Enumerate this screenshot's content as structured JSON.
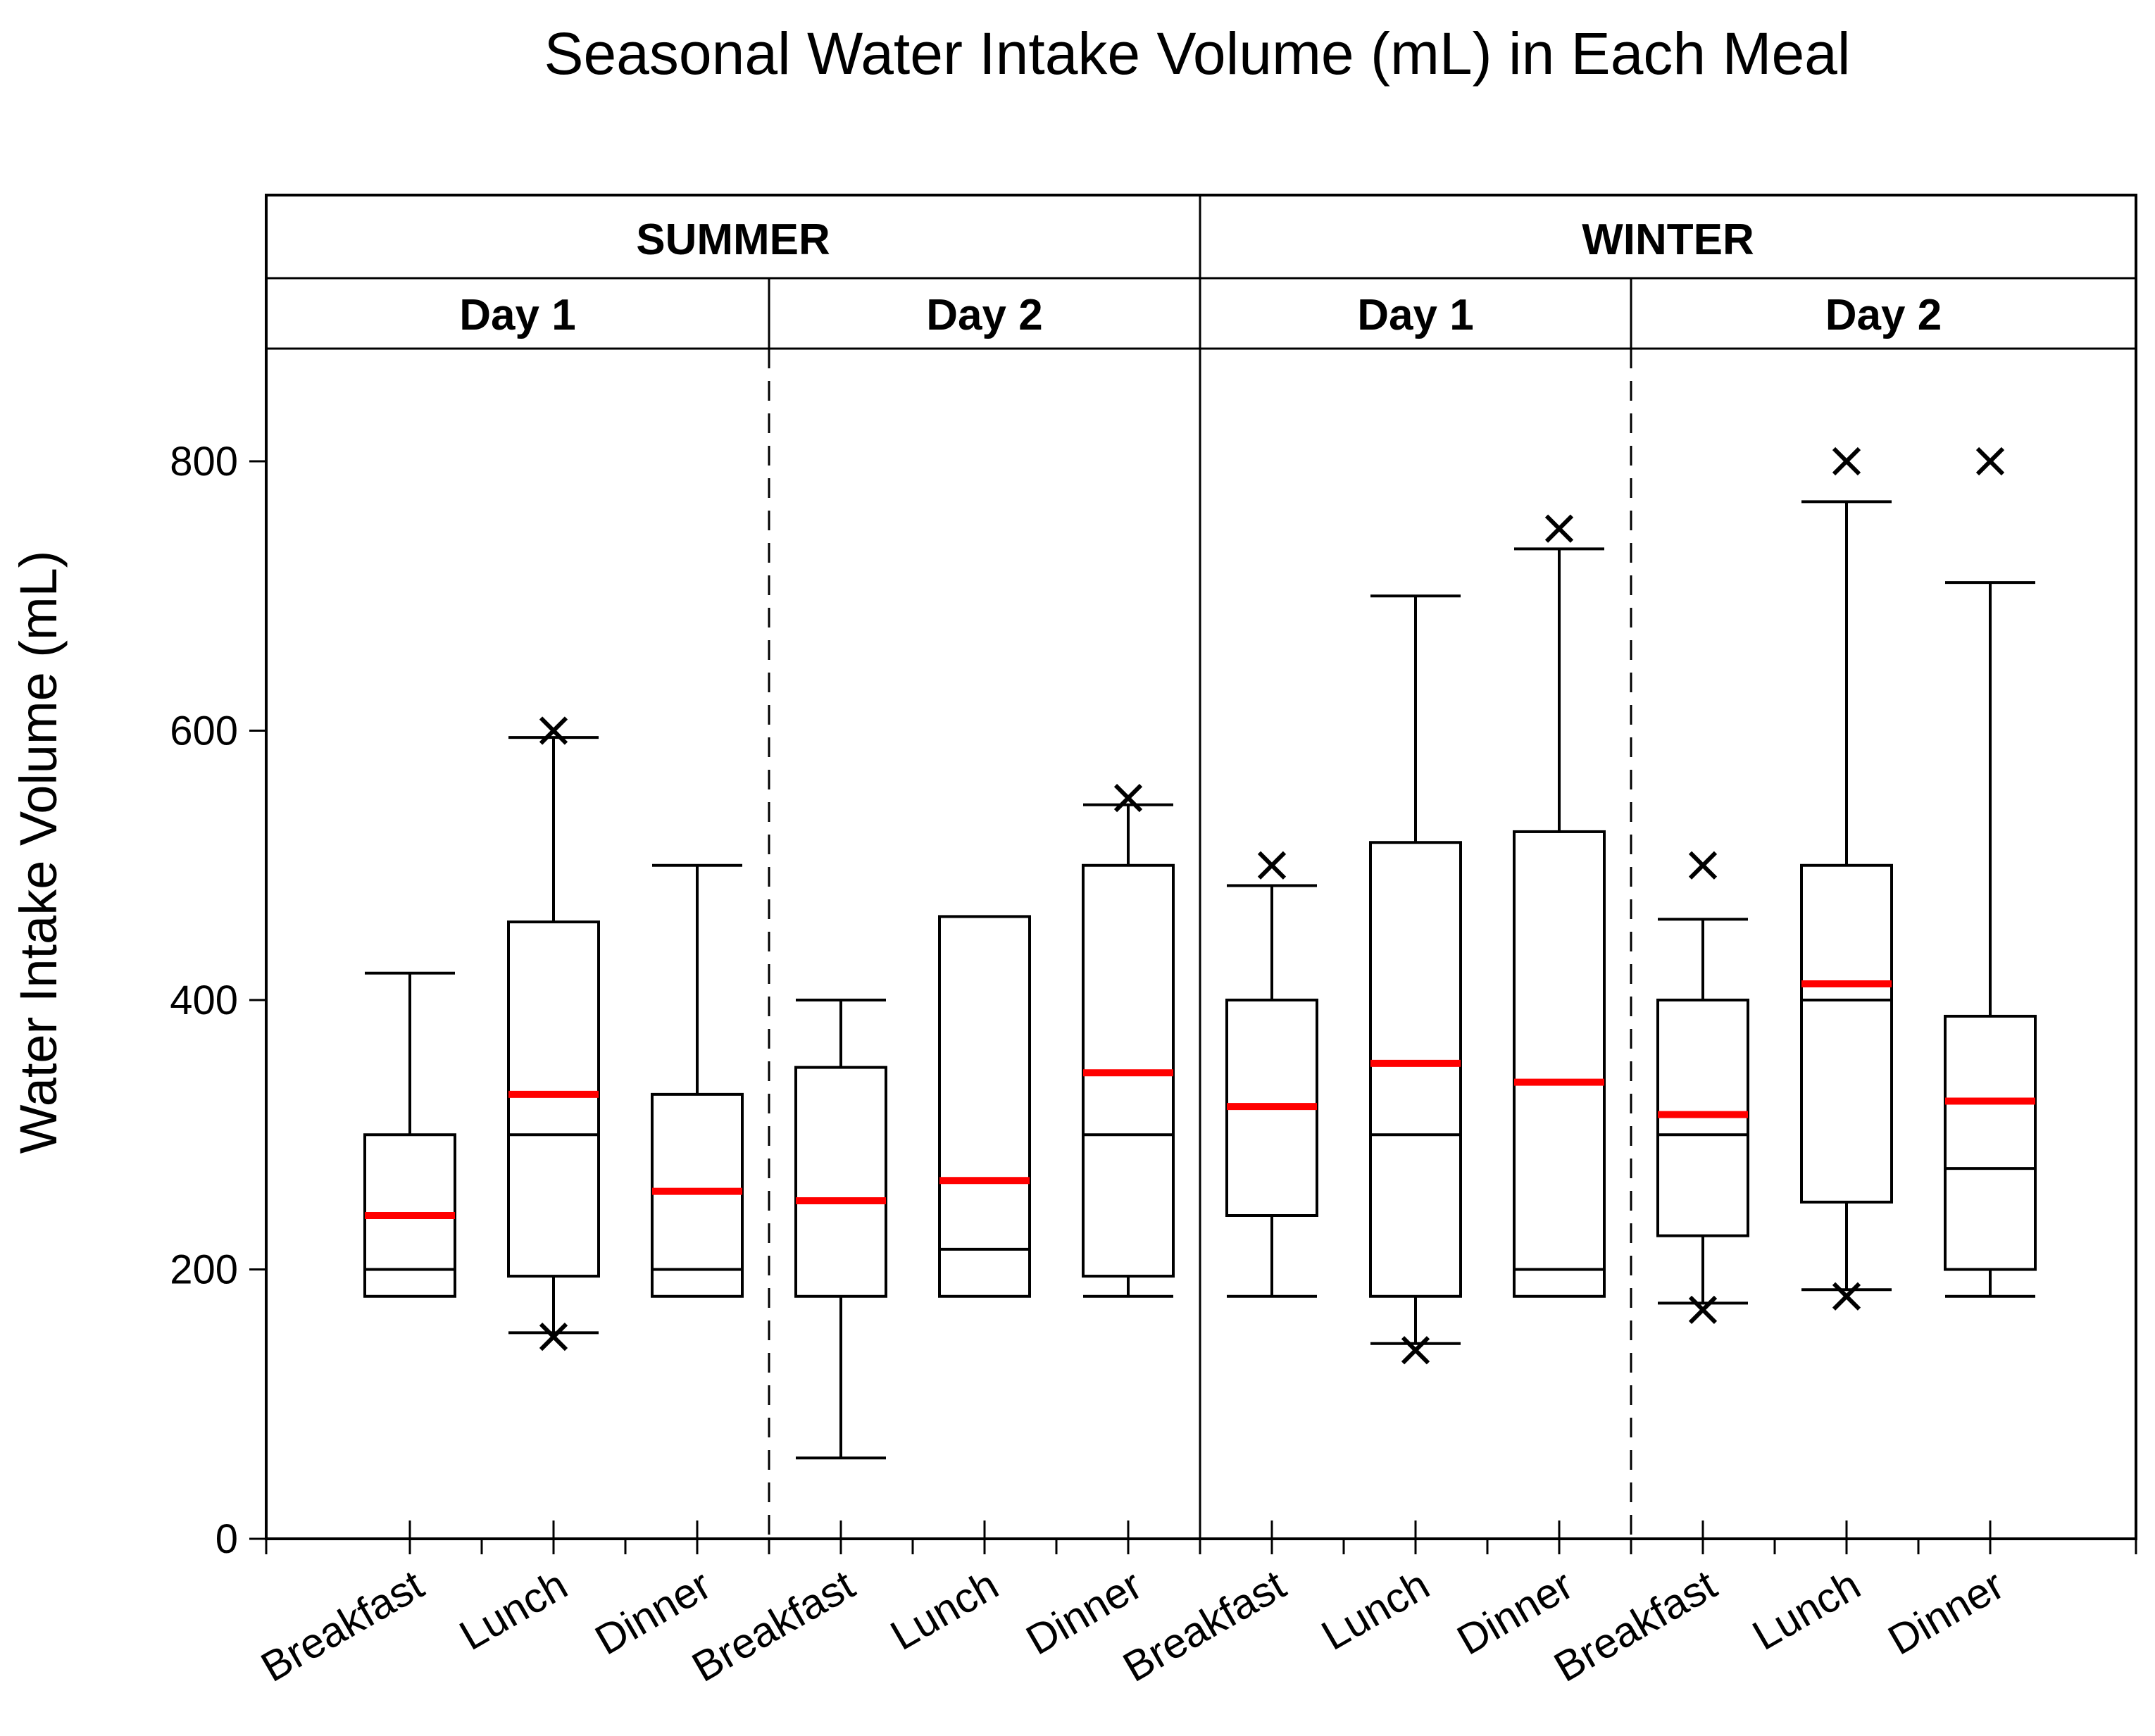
{
  "chart_data": {
    "type": "boxplot",
    "title": "Seasonal Water Intake Volume (mL) in Each Meal",
    "xlabel": "",
    "ylabel": "Water Intake Volume (mL)",
    "ylim": [
      0,
      900
    ],
    "yticks": [
      0,
      200,
      400,
      600,
      800
    ],
    "grid": false,
    "mean_color": "#ff0000",
    "box_color": "#000000",
    "seasons": [
      {
        "name": "SUMMER",
        "days": [
          0,
          1
        ]
      },
      {
        "name": "WINTER",
        "days": [
          2,
          3
        ]
      }
    ],
    "days": [
      {
        "label": "Day 1",
        "season": "SUMMER"
      },
      {
        "label": "Day 2",
        "season": "SUMMER"
      },
      {
        "label": "Day 1",
        "season": "WINTER"
      },
      {
        "label": "Day 2",
        "season": "WINTER"
      }
    ],
    "categories": [
      "Breakfast",
      "Lunch",
      "Dinner",
      "Breakfast",
      "Lunch",
      "Dinner",
      "Breakfast",
      "Lunch",
      "Dinner",
      "Breakfast",
      "Lunch",
      "Dinner"
    ],
    "boxes": [
      {
        "season": "SUMMER",
        "day": "Day 1",
        "meal": "Breakfast",
        "whisker_low": 180,
        "q1": 180,
        "median": 200,
        "q3": 300,
        "whisker_high": 420,
        "mean": 240,
        "outliers": []
      },
      {
        "season": "SUMMER",
        "day": "Day 1",
        "meal": "Lunch",
        "whisker_low": 153,
        "q1": 195,
        "median": 300,
        "q3": 458,
        "whisker_high": 595,
        "mean": 330,
        "outliers": [
          150,
          600
        ]
      },
      {
        "season": "SUMMER",
        "day": "Day 1",
        "meal": "Dinner",
        "whisker_low": 180,
        "q1": 180,
        "median": 200,
        "q3": 330,
        "whisker_high": 500,
        "mean": 258,
        "outliers": []
      },
      {
        "season": "SUMMER",
        "day": "Day 2",
        "meal": "Breakfast",
        "whisker_low": 60,
        "q1": 180,
        "median": 250,
        "q3": 350,
        "whisker_high": 400,
        "mean": 251,
        "outliers": []
      },
      {
        "season": "SUMMER",
        "day": "Day 2",
        "meal": "Lunch",
        "whisker_low": 180,
        "q1": 180,
        "median": 215,
        "q3": 462,
        "whisker_high": 462,
        "mean": 266,
        "outliers": []
      },
      {
        "season": "SUMMER",
        "day": "Day 2",
        "meal": "Dinner",
        "whisker_low": 180,
        "q1": 195,
        "median": 300,
        "q3": 500,
        "whisker_high": 545,
        "mean": 346,
        "outliers": [
          550
        ]
      },
      {
        "season": "WINTER",
        "day": "Day 1",
        "meal": "Breakfast",
        "whisker_low": 180,
        "q1": 240,
        "median": 320,
        "q3": 400,
        "whisker_high": 485,
        "mean": 321,
        "outliers": [
          500
        ]
      },
      {
        "season": "WINTER",
        "day": "Day 1",
        "meal": "Lunch",
        "whisker_low": 145,
        "q1": 180,
        "median": 300,
        "q3": 517,
        "whisker_high": 700,
        "mean": 353,
        "outliers": [
          140
        ]
      },
      {
        "season": "WINTER",
        "day": "Day 1",
        "meal": "Dinner",
        "whisker_low": 180,
        "q1": 180,
        "median": 200,
        "q3": 525,
        "whisker_high": 735,
        "mean": 339,
        "outliers": [
          750
        ]
      },
      {
        "season": "WINTER",
        "day": "Day 2",
        "meal": "Breakfast",
        "whisker_low": 175,
        "q1": 225,
        "median": 300,
        "q3": 400,
        "whisker_high": 460,
        "mean": 315,
        "outliers": [
          170,
          500
        ]
      },
      {
        "season": "WINTER",
        "day": "Day 2",
        "meal": "Lunch",
        "whisker_low": 185,
        "q1": 250,
        "median": 400,
        "q3": 500,
        "whisker_high": 770,
        "mean": 412,
        "outliers": [
          180,
          800
        ]
      },
      {
        "season": "WINTER",
        "day": "Day 2",
        "meal": "Dinner",
        "whisker_low": 180,
        "q1": 200,
        "median": 275,
        "q3": 388,
        "whisker_high": 710,
        "mean": 325,
        "outliers": [
          800
        ]
      }
    ]
  }
}
